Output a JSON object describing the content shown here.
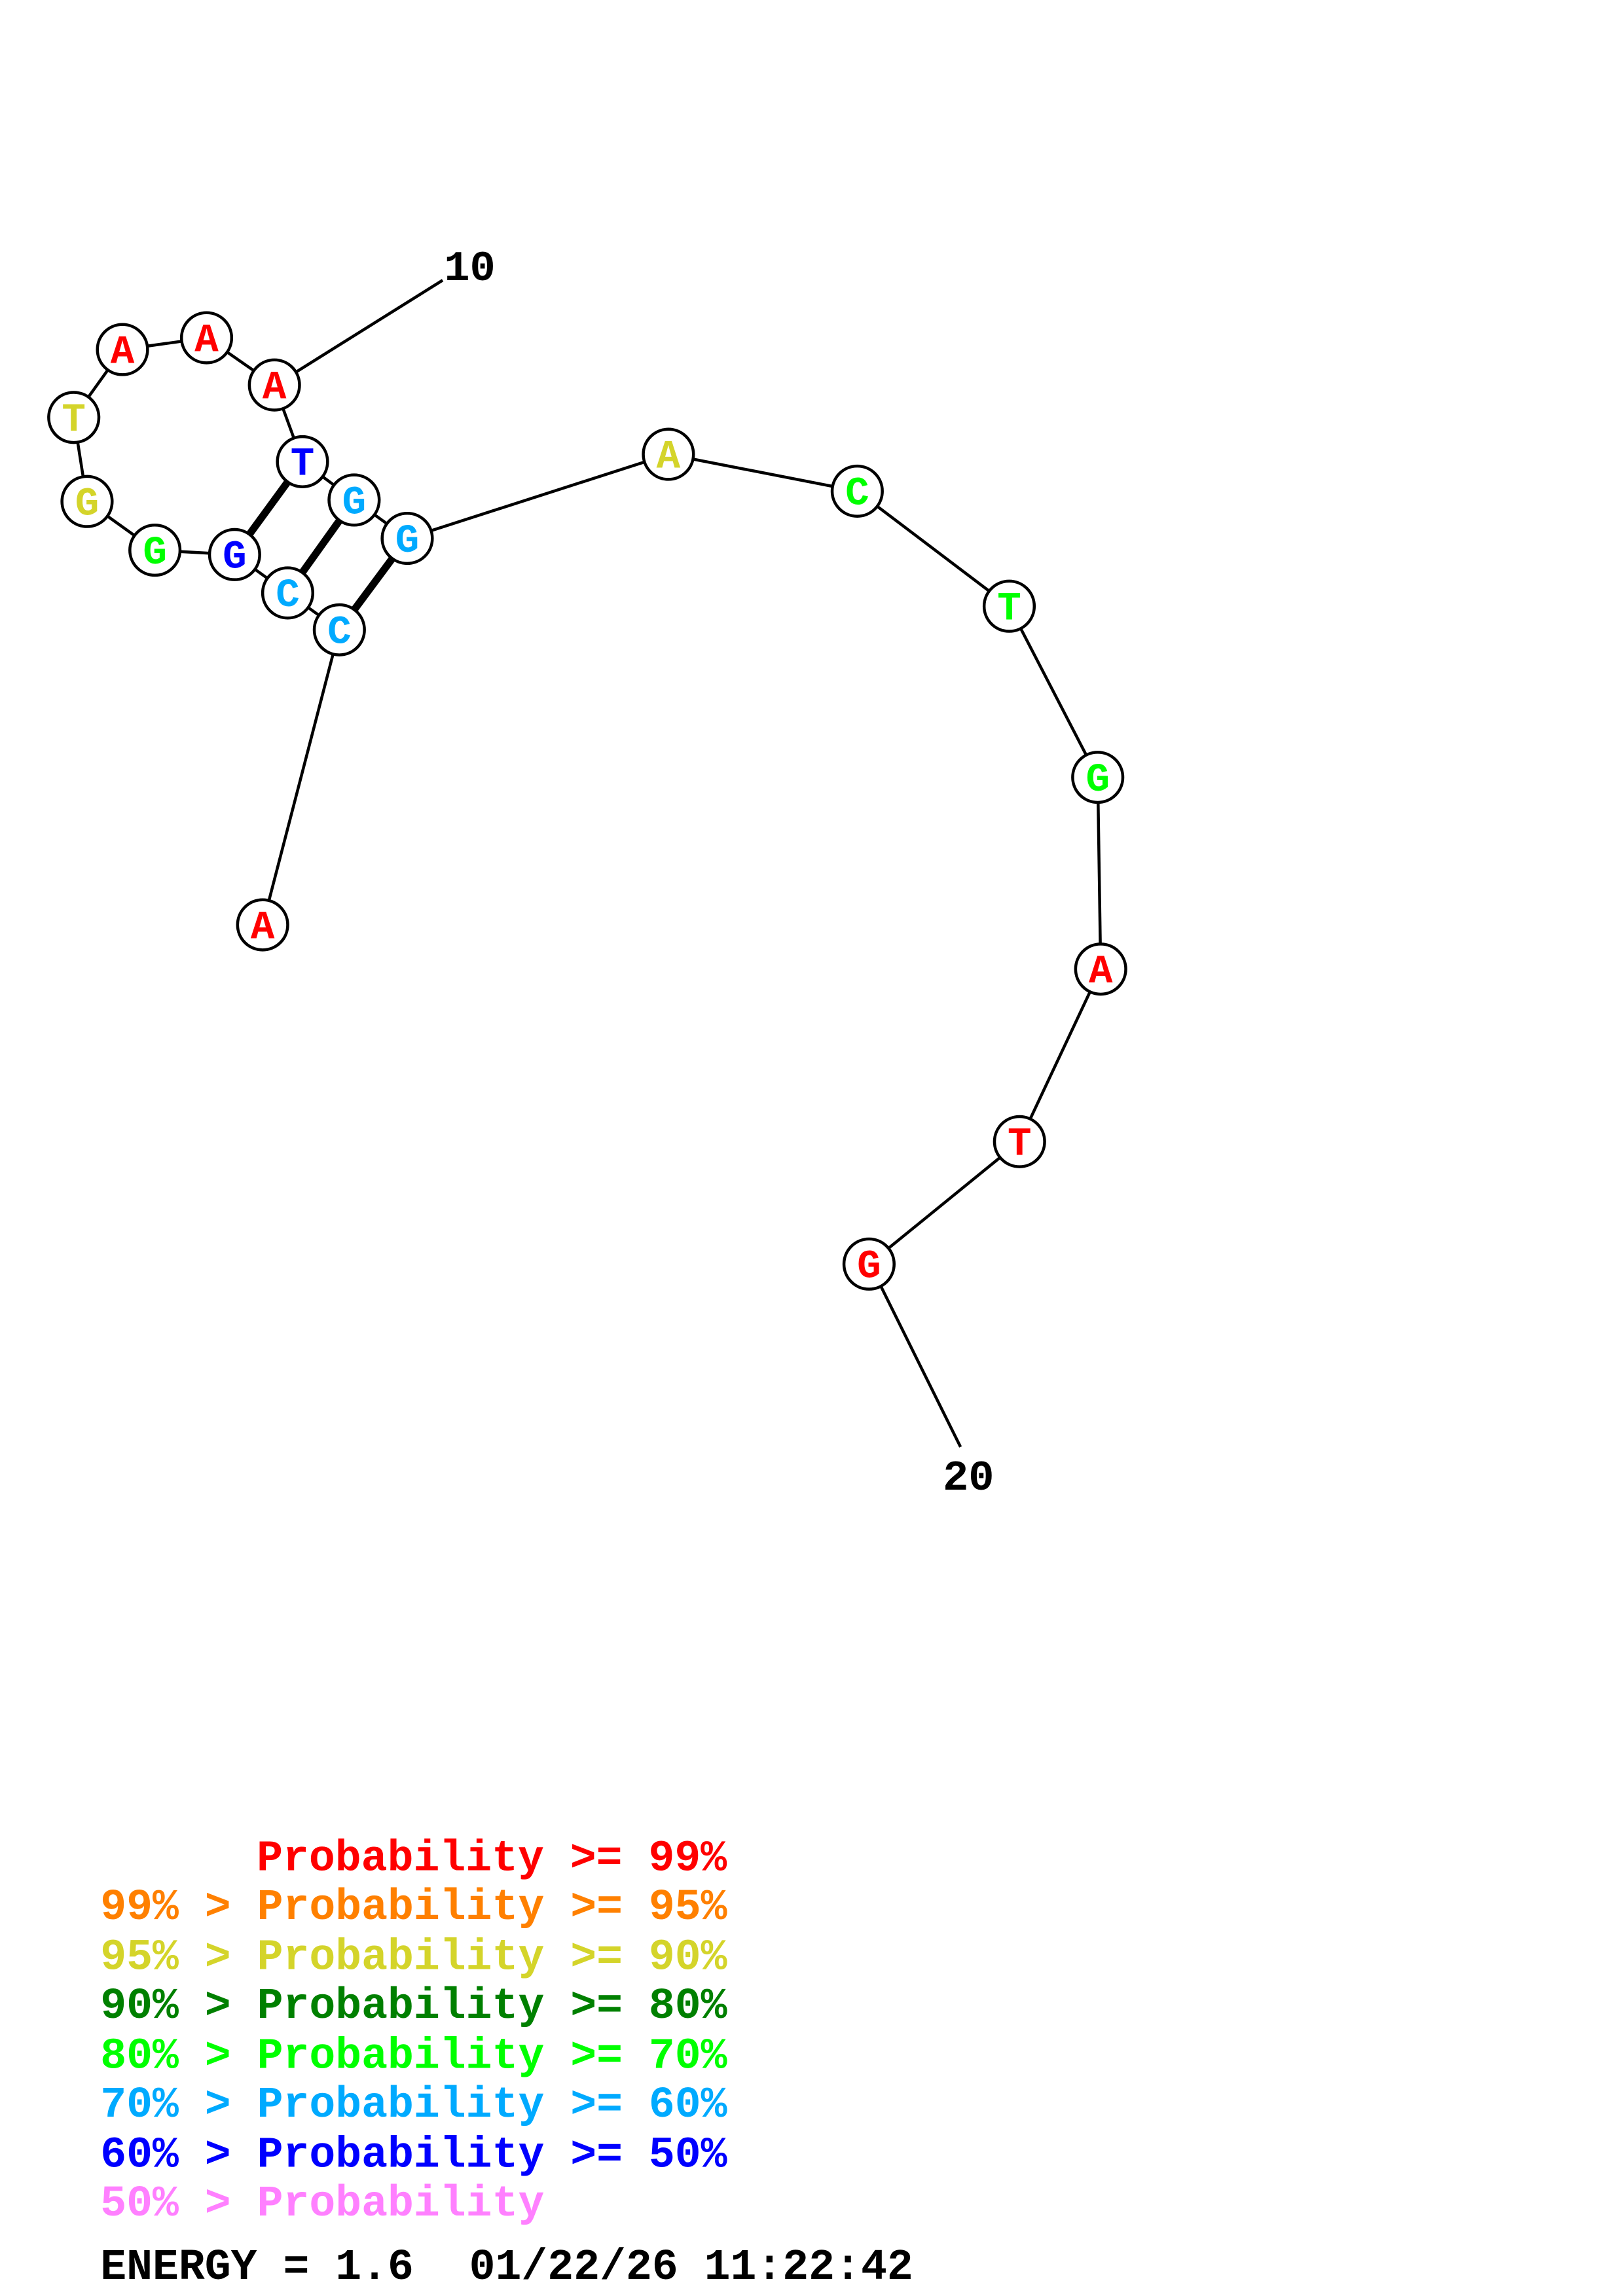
{
  "colors": {
    "p99": "#ff0000",
    "p95": "#ff8000",
    "p90": "#d4d42a",
    "p80": "#008000",
    "p70": "#00ff00",
    "p60": "#00aaff",
    "p50": "#0000ff",
    "p_lt50": "#ff80ff"
  },
  "structure": {
    "nucleotides": [
      {
        "base": "A",
        "color": "p99"
      },
      {
        "base": "C",
        "color": "p60"
      },
      {
        "base": "C",
        "color": "p60"
      },
      {
        "base": "G",
        "color": "p50"
      },
      {
        "base": "G",
        "color": "p70"
      },
      {
        "base": "G",
        "color": "p90"
      },
      {
        "base": "T",
        "color": "p90"
      },
      {
        "base": "A",
        "color": "p99"
      },
      {
        "base": "A",
        "color": "p99"
      },
      {
        "base": "A",
        "color": "p99"
      },
      {
        "base": "T",
        "color": "p50"
      },
      {
        "base": "G",
        "color": "p60"
      },
      {
        "base": "G",
        "color": "p60"
      },
      {
        "base": "A",
        "color": "p90"
      },
      {
        "base": "C",
        "color": "p70"
      },
      {
        "base": "T",
        "color": "p70"
      },
      {
        "base": "G",
        "color": "p70"
      },
      {
        "base": "A",
        "color": "p99"
      },
      {
        "base": "T",
        "color": "p99"
      },
      {
        "base": "G",
        "color": "p99"
      }
    ],
    "pairs": [
      [
        2,
        13
      ],
      [
        3,
        12
      ],
      [
        4,
        11
      ]
    ],
    "position_labels": [
      "10",
      "20"
    ]
  },
  "legend": [
    {
      "text": "Probability >= 99%",
      "color": "p99"
    },
    {
      "text": "99% > Probability >= 95%",
      "color": "p95"
    },
    {
      "text": "95% > Probability >= 90%",
      "color": "p90"
    },
    {
      "text": "90% > Probability >= 80%",
      "color": "p80"
    },
    {
      "text": "80% > Probability >= 70%",
      "color": "p70"
    },
    {
      "text": "70% > Probability >= 60%",
      "color": "p60"
    },
    {
      "text": "60% > Probability >= 50%",
      "color": "p50"
    },
    {
      "text": "50% > Probability",
      "color": "p_lt50"
    }
  ],
  "footer": {
    "energy": "ENERGY = 1.6",
    "timestamp": "01/22/26 11:22:42"
  }
}
